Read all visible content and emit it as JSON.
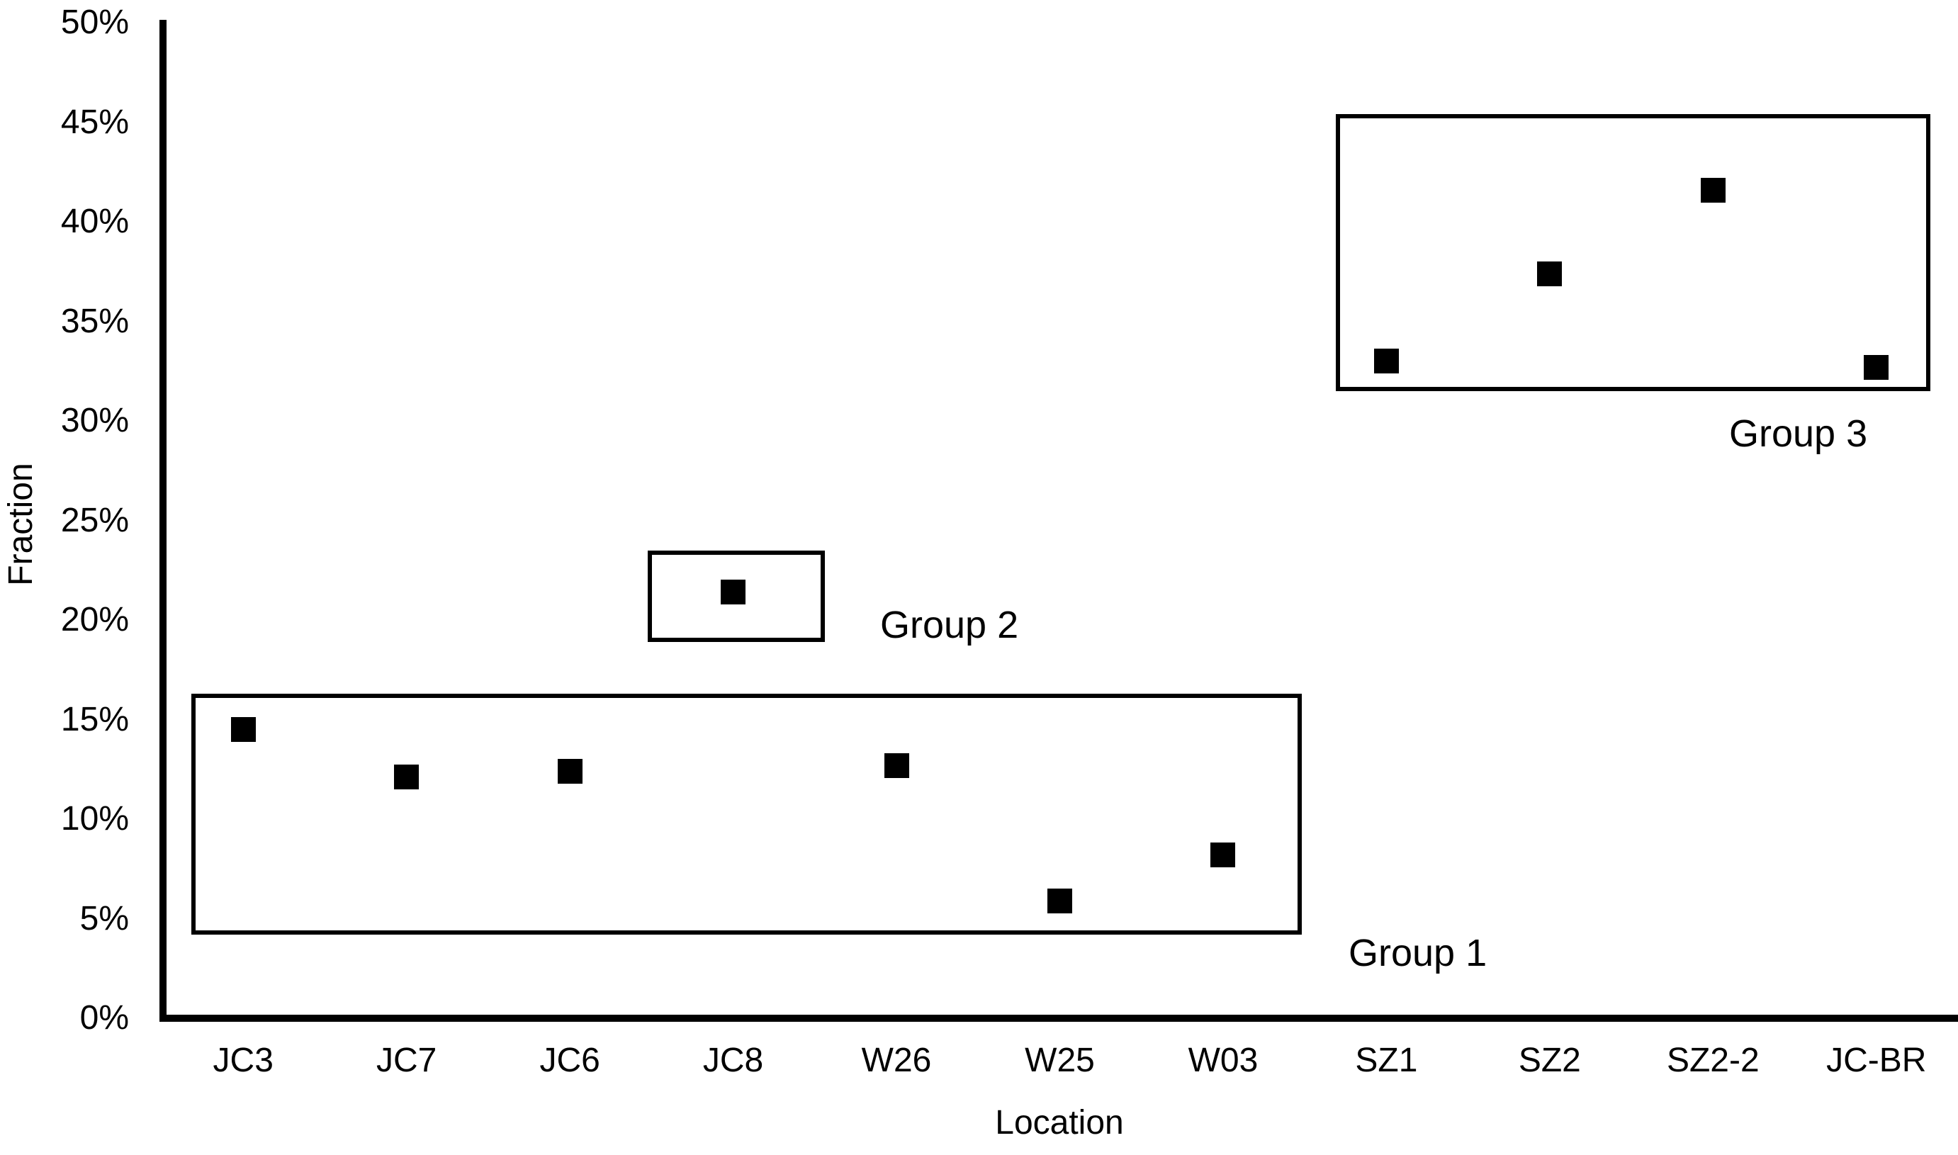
{
  "chart_data": {
    "type": "scatter",
    "title": "",
    "xlabel": "Location",
    "ylabel": "Fraction",
    "categories": [
      "JC3",
      "JC7",
      "JC6",
      "JC8",
      "W26",
      "W25",
      "W03",
      "SZ1",
      "SZ2",
      "SZ2-2",
      "JC-BR"
    ],
    "values": [
      14.5,
      12.1,
      12.4,
      21.4,
      12.7,
      5.9,
      8.2,
      33.0,
      37.4,
      41.6,
      32.7
    ],
    "ylim": [
      0,
      50
    ],
    "y_ticks": [
      "0%",
      "5%",
      "10%",
      "15%",
      "20%",
      "25%",
      "30%",
      "35%",
      "40%",
      "45%",
      "50%"
    ],
    "grid": false,
    "legend": false,
    "marker": {
      "shape": "square",
      "color": "#000000"
    },
    "axis_color": "#000000",
    "background_color": "#ffffff",
    "groups": [
      {
        "label": "Group 1",
        "members": [
          "JC3",
          "JC7",
          "JC6",
          "W26",
          "W25",
          "W03"
        ],
        "from_category": "JC3",
        "to_category": "W03",
        "value_min": 4.2,
        "value_max": 16.3
      },
      {
        "label": "Group 2",
        "members": [
          "JC8"
        ],
        "from_category": "JC8",
        "to_category": "JC8",
        "value_min": 18.9,
        "value_max": 23.5
      },
      {
        "label": "Group 3",
        "members": [
          "SZ1",
          "SZ2",
          "SZ2-2",
          "JC-BR"
        ],
        "from_category": "SZ1",
        "to_category": "JC-BR",
        "value_min": 31.5,
        "value_max": 45.4
      }
    ]
  }
}
